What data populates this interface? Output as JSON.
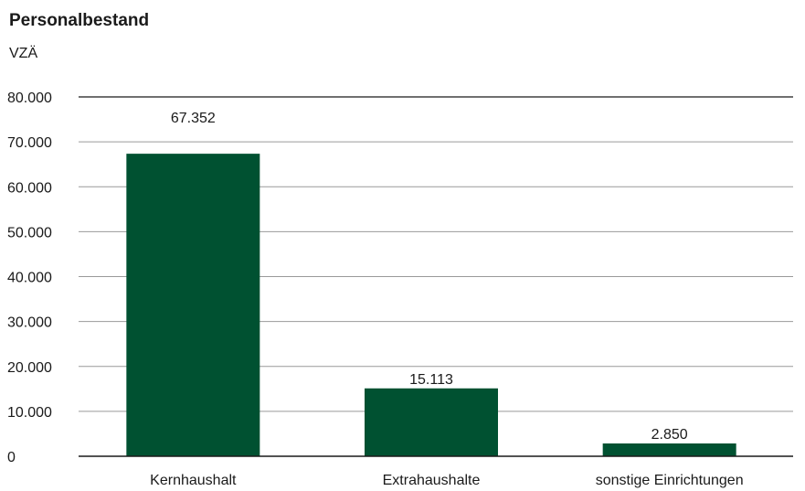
{
  "chart_data": {
    "type": "bar",
    "title": "Personalbestand",
    "ylabel": "VZÄ",
    "xlabel": "",
    "categories": [
      "Kernhaushalt",
      "Extrahaushalte",
      "sonstige Einrichtungen"
    ],
    "values": [
      67352,
      15113,
      2850
    ],
    "value_labels": [
      "67.352",
      "15.113",
      "2.850"
    ],
    "ylim": [
      0,
      80000
    ],
    "yticks": [
      0,
      10000,
      20000,
      30000,
      40000,
      50000,
      60000,
      70000,
      80000
    ],
    "ytick_labels": [
      "0",
      "10.000",
      "20.000",
      "30.000",
      "40.000",
      "50.000",
      "60.000",
      "70.000",
      "80.000"
    ],
    "grid": true,
    "legend": "none",
    "colors": {
      "bar": "#005131",
      "grid": "#9a9a9a",
      "axis": "#1a1a1a",
      "text": "#1a1a1a"
    }
  }
}
